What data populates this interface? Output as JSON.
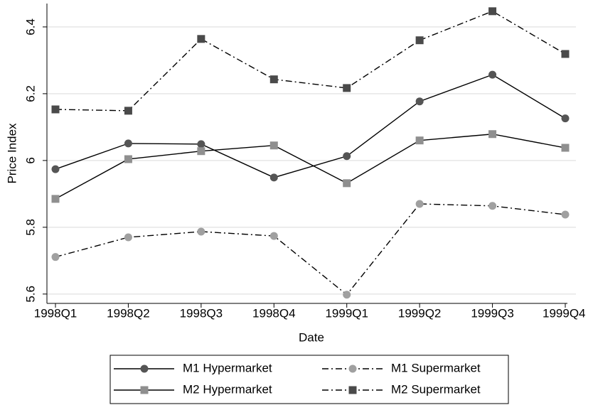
{
  "chart_data": {
    "type": "line",
    "x_label": "Date",
    "y_label": "Price Index",
    "categories": [
      "1998Q1",
      "1998Q2",
      "1998Q3",
      "1998Q4",
      "1999Q1",
      "1999Q2",
      "1999Q3",
      "1999Q4"
    ],
    "series": [
      {
        "name": "M1 Hypermarket",
        "color": "#555555",
        "marker": "circle",
        "line_style": "solid",
        "values": [
          5.974,
          6.051,
          6.049,
          5.949,
          6.013,
          6.177,
          6.257,
          6.126
        ]
      },
      {
        "name": "M1 Supermarket",
        "color": "#a0a0a0",
        "marker": "circle",
        "line_style": "dashdot",
        "values": [
          5.711,
          5.77,
          5.787,
          5.774,
          5.598,
          5.87,
          5.864,
          5.838
        ]
      },
      {
        "name": "M2 Hypermarket",
        "color": "#8f8f8f",
        "marker": "square",
        "line_style": "solid",
        "values": [
          5.885,
          6.004,
          6.028,
          6.045,
          5.932,
          6.06,
          6.079,
          6.038
        ]
      },
      {
        "name": "M2 Supermarket",
        "color": "#4a4a4a",
        "marker": "square",
        "line_style": "dashdot",
        "values": [
          6.153,
          6.149,
          6.364,
          6.243,
          6.217,
          6.36,
          6.447,
          6.319
        ]
      }
    ],
    "line_color": "#000000",
    "ylim": [
      5.572,
      6.47
    ],
    "yticks": [
      {
        "value": 5.6,
        "label": "5.6"
      },
      {
        "value": 5.8,
        "label": "5.8"
      },
      6,
      {
        "value": 6.2,
        "label": "6.2"
      },
      {
        "value": 6.4,
        "label": "6.4"
      }
    ],
    "grid": true,
    "legend": "bottom"
  }
}
